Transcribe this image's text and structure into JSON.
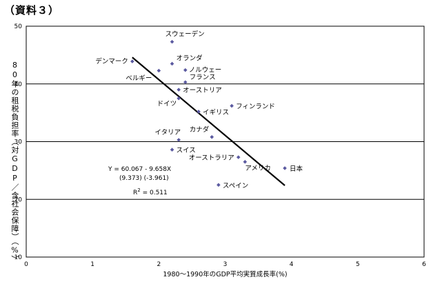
{
  "document_label": "（資料３）",
  "chart_data": {
    "type": "scatter",
    "title": "",
    "xlabel": "1980〜1990年のGDP平均実質成長率(%)",
    "ylabel": "80年の租税負担率（対GDP／含社会保障）（%）",
    "xlim": [
      0,
      6
    ],
    "ylim": [
      10,
      50
    ],
    "xticks": [
      0,
      1,
      2,
      3,
      4,
      5,
      6
    ],
    "yticks": [
      10,
      20,
      30,
      40,
      50
    ],
    "grid": "horizontal",
    "marker_color": "#5b5aa0",
    "line_color": "#000000",
    "points": [
      {
        "label": "スウェーデン",
        "x": 2.2,
        "y": 47.3
      },
      {
        "label": "オランダ",
        "x": 2.2,
        "y": 43.5
      },
      {
        "label": "デンマーク",
        "x": 1.6,
        "y": 43.9
      },
      {
        "label": "ノルウェー",
        "x": 2.4,
        "y": 42.4
      },
      {
        "label": "ベルギー",
        "x": 2.0,
        "y": 42.3
      },
      {
        "label": "フランス",
        "x": 2.4,
        "y": 40.3
      },
      {
        "label": "オーストリア",
        "x": 2.3,
        "y": 39.0
      },
      {
        "label": "ドイツ",
        "x": 2.3,
        "y": 37.5
      },
      {
        "label": "イギリス",
        "x": 2.6,
        "y": 35.2
      },
      {
        "label": "フィンランド",
        "x": 3.1,
        "y": 36.2
      },
      {
        "label": "カナダ",
        "x": 2.8,
        "y": 30.8
      },
      {
        "label": "イタリア",
        "x": 2.3,
        "y": 30.3
      },
      {
        "label": "スイス",
        "x": 2.2,
        "y": 28.6
      },
      {
        "label": "オーストラリア",
        "x": 3.2,
        "y": 27.3
      },
      {
        "label": "アメリカ",
        "x": 3.3,
        "y": 26.5
      },
      {
        "label": "日本",
        "x": 3.9,
        "y": 25.4
      },
      {
        "label": "スペイン",
        "x": 2.9,
        "y": 22.5
      }
    ],
    "regression": {
      "x": [
        1.6,
        3.9
      ],
      "y": [
        44.6,
        22.4
      ],
      "equation": "Y = 60.067 - 9.658X",
      "tstats": "(9.373)  (-3.961)",
      "r2_label": "R",
      "r2_value": " = 0.511"
    }
  }
}
